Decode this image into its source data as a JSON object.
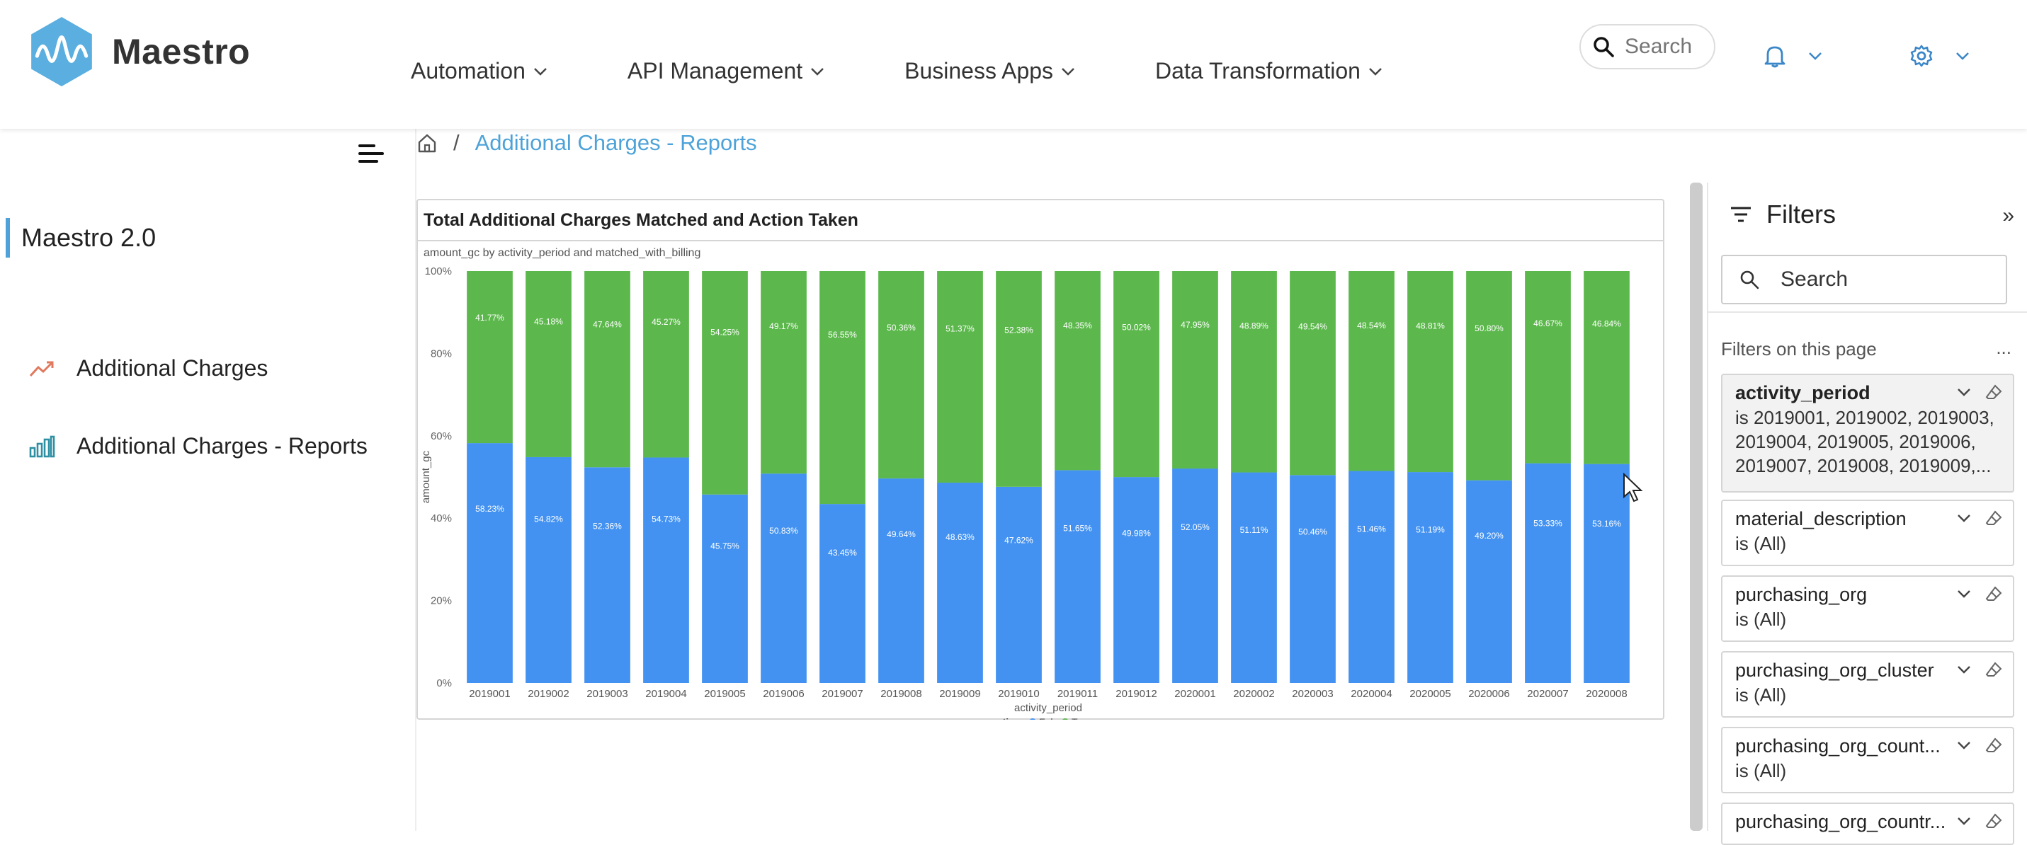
{
  "app": {
    "name": "Maestro"
  },
  "nav": [
    {
      "label": "Automation"
    },
    {
      "label": "API Management"
    },
    {
      "label": "Business Apps"
    },
    {
      "label": "Data Transformation"
    }
  ],
  "search": {
    "placeholder": "Search"
  },
  "sidebar": {
    "section_label": "Maestro 2.0",
    "items": [
      {
        "label": "Additional Charges",
        "icon": "trending-up-icon",
        "color": "#e07a5f"
      },
      {
        "label": "Additional Charges - Reports",
        "icon": "bar-chart-icon",
        "color": "#2e8fa3"
      }
    ]
  },
  "breadcrumb": {
    "home_icon": "home-icon",
    "current": "Additional Charges - Reports"
  },
  "report": {
    "title": "Total Additional Charges Matched and Action Taken",
    "subtitle": "amount_gc by activity_period and matched_with_billing"
  },
  "chart_data": {
    "type": "bar",
    "stacked": "100%",
    "categories": [
      "2019001",
      "2019002",
      "2019003",
      "2019004",
      "2019005",
      "2019006",
      "2019007",
      "2019008",
      "2019009",
      "2019010",
      "2019011",
      "2019012",
      "2020001",
      "2020002",
      "2020003",
      "2020004",
      "2020005",
      "2020006",
      "2020007",
      "2020008"
    ],
    "series": [
      {
        "name": "False",
        "color": "#4392f1",
        "values": [
          58.23,
          54.82,
          52.36,
          54.73,
          45.75,
          50.83,
          43.45,
          49.64,
          48.63,
          47.62,
          51.65,
          49.98,
          52.05,
          51.11,
          50.46,
          51.46,
          51.19,
          49.2,
          53.33,
          53.16
        ],
        "labels": [
          "58.23%",
          "54.82%",
          "52.36%",
          "54.73%",
          "45.75%",
          "50.83%",
          "43.45%",
          "49.64%",
          "48.63%",
          "47.62%",
          "51.65%",
          "49.98%",
          "52.05%",
          "51.11%",
          "50.46%",
          "51.46%",
          "51.19%",
          "49.20%",
          "53.33%",
          "53.16%"
        ]
      },
      {
        "name": "True",
        "color": "#5cb84c",
        "values": [
          41.77,
          45.18,
          47.64,
          45.27,
          54.25,
          49.17,
          56.55,
          50.36,
          51.37,
          52.38,
          48.35,
          50.02,
          47.95,
          48.89,
          49.54,
          48.54,
          48.81,
          50.8,
          46.67,
          46.84
        ],
        "labels": [
          "41.77%",
          "45.18%",
          "47.64%",
          "45.27%",
          "54.25%",
          "49.17%",
          "56.55%",
          "50.36%",
          "51.37%",
          "52.38%",
          "48.35%",
          "50.02%",
          "47.95%",
          "48.89%",
          "49.54%",
          "48.54%",
          "48.81%",
          "50.80%",
          "46.67%",
          "46.84%"
        ]
      }
    ],
    "xlabel": "activity_period",
    "ylabel": "amount_gc",
    "ylim": [
      0,
      100
    ],
    "yticks": [
      "0%",
      "20%",
      "40%",
      "60%",
      "80%",
      "100%"
    ],
    "legend_title": "action",
    "legend_placement": "bottom-center"
  },
  "filters": {
    "title": "Filters",
    "search_placeholder": "Search",
    "section_label": "Filters on this page",
    "more": "...",
    "expand": "»",
    "items": [
      {
        "name": "activity_period",
        "value": "is 2019001, 2019002, 2019003, 2019004, 2019005, 2019006, 2019007, 2019008, 2019009,..."
      },
      {
        "name": "material_description",
        "value": "is (All)"
      },
      {
        "name": "purchasing_org",
        "value": "is (All)"
      },
      {
        "name": "purchasing_org_cluster",
        "value": "is (All)"
      },
      {
        "name": "purchasing_org_count...",
        "value": "is (All)"
      },
      {
        "name": "purchasing_org_countr...",
        "value": ""
      }
    ]
  }
}
